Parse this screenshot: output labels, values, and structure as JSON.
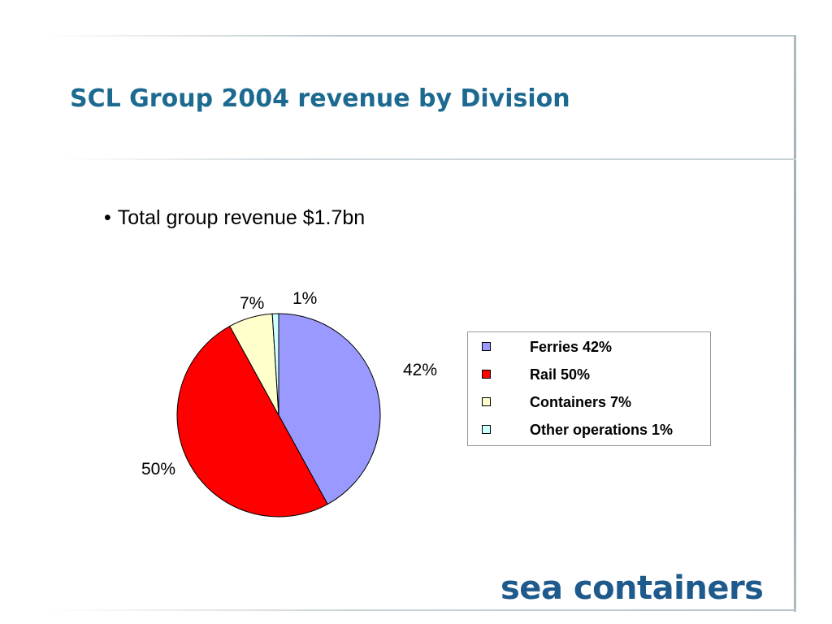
{
  "page": {
    "title": "SCL Group 2004 revenue by Division",
    "bullet": "Total group revenue $1.7bn",
    "logo_text": "sea containers",
    "colors": {
      "title": "#1d6a91",
      "logo": "#1e5a8c"
    }
  },
  "chart_data": {
    "type": "pie",
    "title": "",
    "slices": [
      {
        "label": "Ferries 42%",
        "value": 42,
        "data_label": "42%",
        "color": "#9999ff"
      },
      {
        "label": "Rail 50%",
        "value": 50,
        "data_label": "50%",
        "color": "#ff0000"
      },
      {
        "label": "Containers 7%",
        "value": 7,
        "data_label": "7%",
        "color": "#ffffcc"
      },
      {
        "label": "Other operations 1%",
        "value": 1,
        "data_label": "1%",
        "color": "#ccffff"
      }
    ],
    "legend_position": "right"
  }
}
